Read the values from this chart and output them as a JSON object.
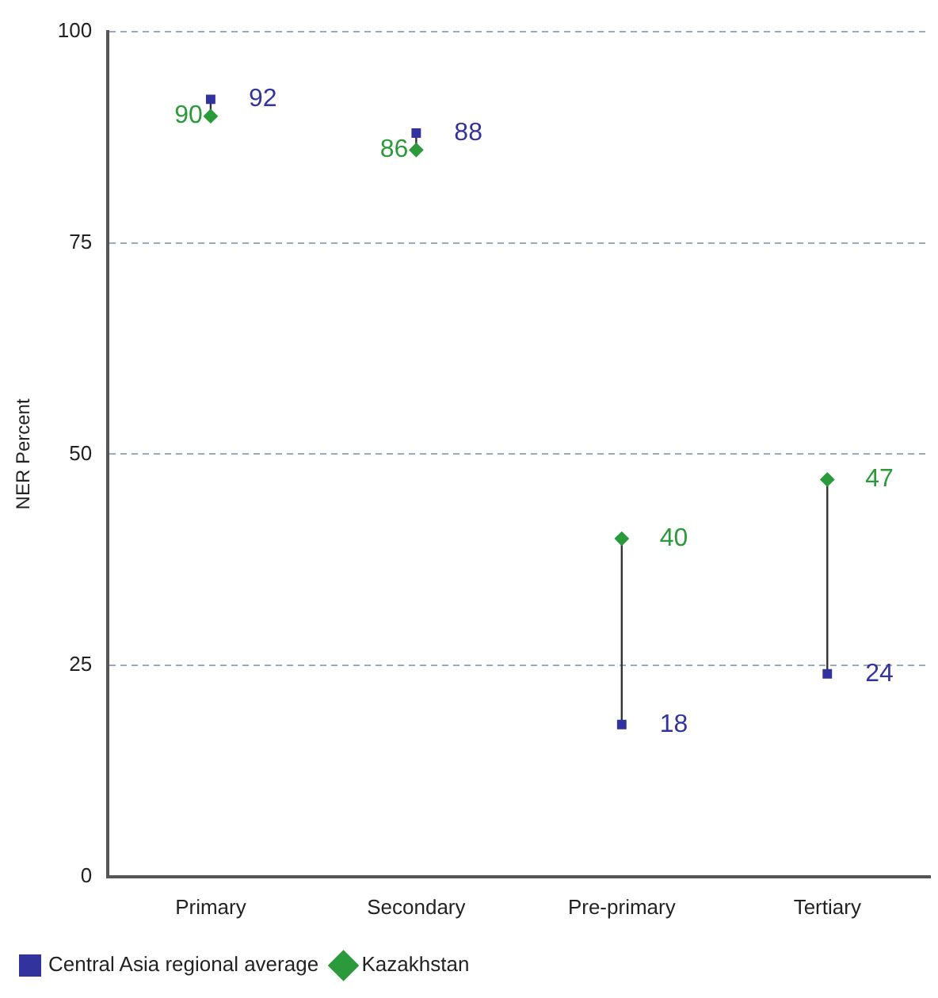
{
  "chart_data": {
    "type": "scatter",
    "ylabel": "NER Percent",
    "categories": [
      "Primary",
      "Secondary",
      "Pre-primary",
      "Tertiary"
    ],
    "series": [
      {
        "name": "Central Asia regional average",
        "color": "#33339e",
        "marker": "square",
        "values": [
          92,
          88,
          18,
          24
        ]
      },
      {
        "name": "Kazakhstan",
        "color": "#2a9a3a",
        "marker": "diamond",
        "values": [
          90,
          86,
          40,
          47
        ]
      }
    ],
    "ylim": [
      0,
      100
    ],
    "yticks": [
      0,
      25,
      50,
      75,
      100
    ],
    "grid": "y",
    "legend": "bottom left",
    "data_labels": true
  }
}
